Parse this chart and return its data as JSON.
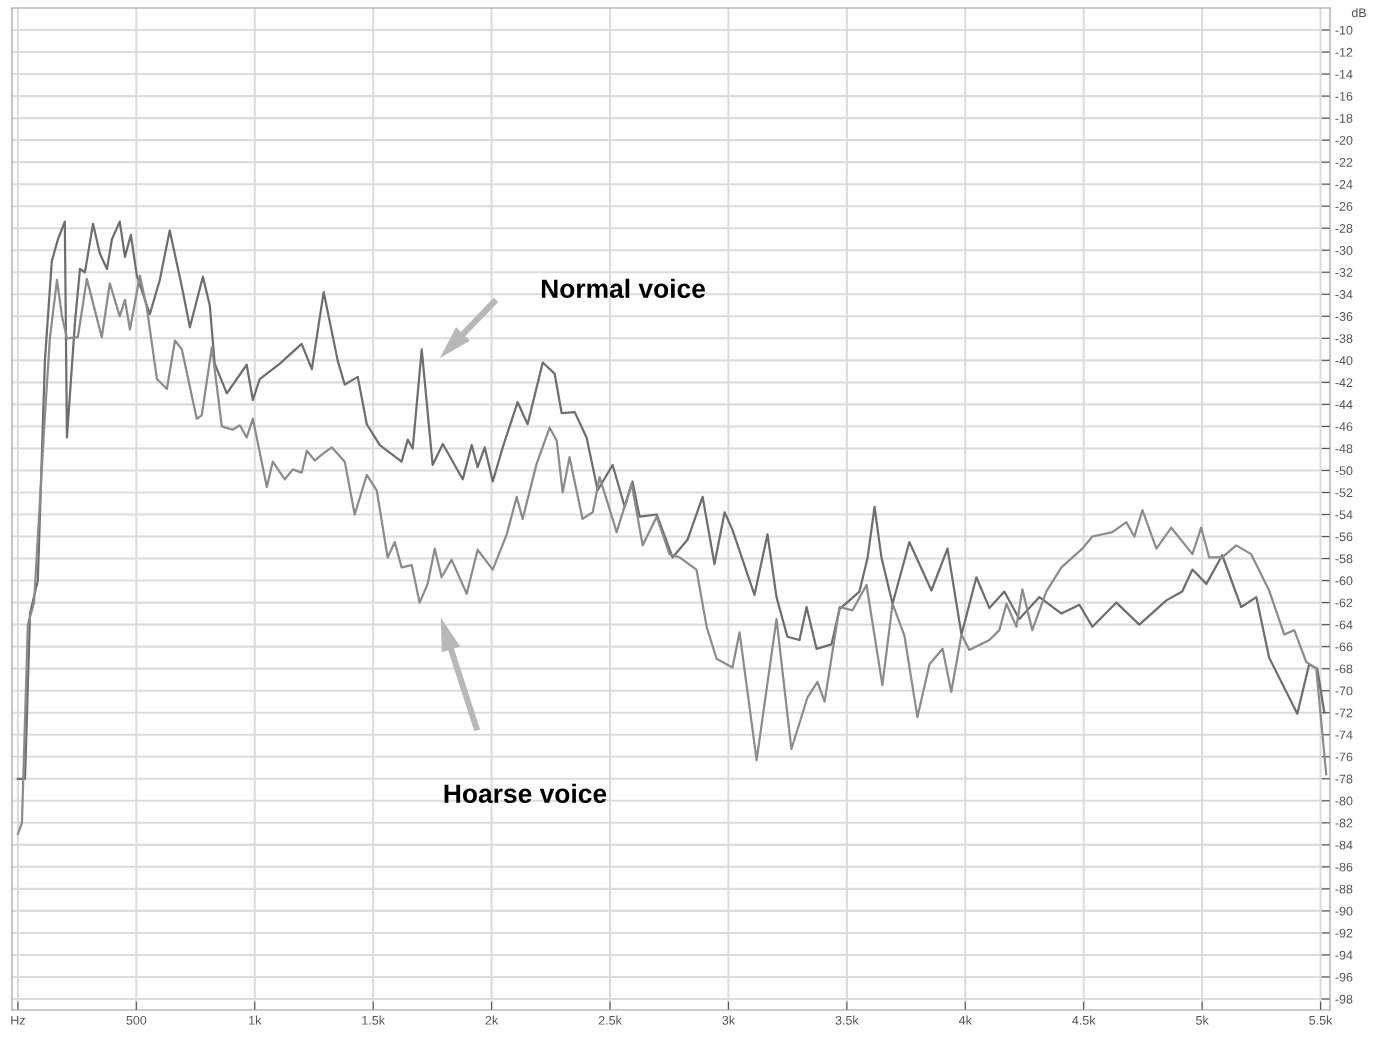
{
  "chart_data": {
    "type": "line",
    "ylabel": "dB",
    "xlim": [
      -25,
      5540
    ],
    "ylim": [
      -99,
      -8
    ],
    "xticks": [
      {
        "value": 0,
        "label": "Hz"
      },
      500,
      {
        "value": 1000,
        "label": "1k"
      },
      {
        "value": 1500,
        "label": "1.5k"
      },
      {
        "value": 2000,
        "label": "2k"
      },
      {
        "value": 2500,
        "label": "2.5k"
      },
      {
        "value": 3000,
        "label": "3k"
      },
      {
        "value": 3500,
        "label": "3.5k"
      },
      {
        "value": 4000,
        "label": "4k"
      },
      {
        "value": 4500,
        "label": "4.5k"
      },
      {
        "value": 5000,
        "label": "5k"
      },
      {
        "value": 5500,
        "label": "5.5k"
      }
    ],
    "yticks": [
      -10,
      -12,
      -14,
      -16,
      -18,
      -20,
      -22,
      -24,
      -26,
      -28,
      -30,
      -32,
      -34,
      -36,
      -38,
      -40,
      -42,
      -44,
      -46,
      -48,
      -50,
      -52,
      -54,
      -56,
      -58,
      -60,
      -62,
      -64,
      -66,
      -68,
      -70,
      -72,
      -74,
      -76,
      -78,
      -80,
      -82,
      -84,
      -86,
      -88,
      -90,
      -92,
      -94,
      -96,
      -98
    ],
    "grid": true,
    "legend": false,
    "marker": "none",
    "line_style": "solid",
    "series": [
      {
        "color": "#6e6e6e",
        "x": [
          0,
          30,
          51,
          84,
          114,
          143,
          169,
          198,
          207,
          241,
          262,
          283,
          317,
          346,
          376,
          397,
          430,
          452,
          477,
          502,
          557,
          599,
          641,
          692,
          726,
          781,
          810,
          831,
          882,
          966,
          992,
          1021,
          1106,
          1198,
          1241,
          1291,
          1350,
          1380,
          1435,
          1473,
          1528,
          1620,
          1646,
          1667,
          1705,
          1751,
          1794,
          1878,
          1916,
          1941,
          1971,
          2005,
          2047,
          2110,
          2152,
          2216,
          2266,
          2296,
          2351,
          2401,
          2448,
          2511,
          2562,
          2595,
          2625,
          2697,
          2764,
          2827,
          2891,
          2941,
          2984,
          3017,
          3110,
          3165,
          3203,
          3249,
          3300,
          3330,
          3372,
          3435,
          3469,
          3553,
          3587,
          3617,
          3646,
          3693,
          3764,
          3857,
          3925,
          3984,
          4047,
          4102,
          4165,
          4228,
          4313,
          4406,
          4482,
          4537,
          4638,
          4735,
          4849,
          4916,
          4959,
          5018,
          5085,
          5165,
          5229,
          5283,
          5402,
          5452,
          5486,
          5516
        ],
        "values": [
          -78,
          -78,
          -63,
          -60,
          -40,
          -31,
          -29,
          -27.4,
          -47,
          -36.5,
          -31.7,
          -32,
          -27.6,
          -30.3,
          -31.7,
          -29,
          -27.4,
          -30.6,
          -28.6,
          -32.3,
          -35.8,
          -32.7,
          -28.2,
          -33.3,
          -37,
          -32.4,
          -35,
          -40.3,
          -43,
          -40.4,
          -43.6,
          -41.7,
          -40.3,
          -38.5,
          -40.8,
          -33.8,
          -40,
          -42.2,
          -41.5,
          -45.8,
          -47.7,
          -49.2,
          -47.2,
          -48,
          -39,
          -49.5,
          -47.6,
          -50.8,
          -47.7,
          -49.7,
          -47.9,
          -51,
          -47.9,
          -43.8,
          -45.8,
          -40.2,
          -41.2,
          -44.8,
          -44.7,
          -47,
          -51.8,
          -49.5,
          -53.3,
          -51,
          -54.2,
          -54,
          -57.9,
          -56.3,
          -52.4,
          -58.5,
          -53.8,
          -55.4,
          -61.3,
          -55.8,
          -61.5,
          -65.1,
          -65.4,
          -62.4,
          -66.2,
          -65.8,
          -62.6,
          -61,
          -58,
          -53.3,
          -57.9,
          -62.1,
          -56.5,
          -60.9,
          -57.1,
          -64.9,
          -59.7,
          -62.5,
          -61,
          -63.5,
          -61.5,
          -63,
          -62.2,
          -64.2,
          -62,
          -64,
          -61.8,
          -61,
          -59,
          -60.3,
          -57.7,
          -62.4,
          -61.5,
          -67,
          -72.1,
          -67.6,
          -68,
          -72
        ]
      },
      {
        "color": "#8c8c8c",
        "x": [
          0,
          17,
          42,
          68,
          114,
          135,
          165,
          186,
          207,
          253,
          291,
          354,
          388,
          430,
          452,
          473,
          515,
          544,
          587,
          629,
          663,
          692,
          755,
          776,
          819,
          861,
          907,
          937,
          966,
          992,
          1051,
          1076,
          1127,
          1161,
          1198,
          1220,
          1253,
          1287,
          1325,
          1380,
          1422,
          1473,
          1515,
          1561,
          1591,
          1620,
          1663,
          1696,
          1730,
          1760,
          1789,
          1831,
          1895,
          1941,
          2005,
          2064,
          2106,
          2131,
          2190,
          2245,
          2275,
          2300,
          2329,
          2384,
          2427,
          2456,
          2528,
          2591,
          2638,
          2697,
          2751,
          2794,
          2865,
          2908,
          2950,
          3017,
          3047,
          3119,
          3203,
          3266,
          3334,
          3376,
          3406,
          3469,
          3524,
          3583,
          3650,
          3693,
          3743,
          3798,
          3849,
          3904,
          3941,
          3984,
          4017,
          4102,
          4144,
          4174,
          4216,
          4241,
          4283,
          4342,
          4406,
          4494,
          4537,
          4621,
          4680,
          4714,
          4748,
          4807,
          4870,
          4959,
          4996,
          5030,
          5085,
          5144,
          5207,
          5283,
          5347,
          5389,
          5440,
          5482,
          5524
        ],
        "values": [
          -83,
          -82,
          -64,
          -62,
          -45,
          -38,
          -32.7,
          -36,
          -38,
          -37.9,
          -32.6,
          -37.9,
          -33,
          -36,
          -34.5,
          -37.2,
          -32.3,
          -35.2,
          -41.7,
          -42.6,
          -38.2,
          -39,
          -45.3,
          -45,
          -38.8,
          -46,
          -46.3,
          -45.9,
          -47,
          -45.3,
          -51.5,
          -49.2,
          -50.8,
          -49.9,
          -50.2,
          -48.2,
          -49.1,
          -48.5,
          -47.9,
          -49.2,
          -54,
          -50.4,
          -51.8,
          -57.9,
          -56.5,
          -58.8,
          -58.6,
          -62,
          -60.3,
          -57.1,
          -59.7,
          -58.1,
          -61.2,
          -57.2,
          -59,
          -55.8,
          -52.4,
          -54.4,
          -49.4,
          -46.1,
          -47.3,
          -52,
          -48.8,
          -54.4,
          -53.8,
          -50.6,
          -55.6,
          -51.2,
          -56.8,
          -54.2,
          -57.6,
          -57.9,
          -59,
          -64.2,
          -67.1,
          -67.9,
          -64.7,
          -76.3,
          -63.5,
          -75.3,
          -70.6,
          -69.2,
          -71,
          -62.4,
          -62.7,
          -60.4,
          -69.5,
          -62.1,
          -65,
          -72.4,
          -67.6,
          -66.2,
          -70.1,
          -64.9,
          -66.3,
          -65.4,
          -64.5,
          -62.1,
          -64.2,
          -60.8,
          -64.5,
          -61,
          -58.8,
          -57.1,
          -56,
          -55.6,
          -54.7,
          -56,
          -53.6,
          -57.1,
          -55.2,
          -57.6,
          -55.2,
          -57.9,
          -57.9,
          -56.8,
          -57.6,
          -60.9,
          -64.9,
          -64.5,
          -67.4,
          -68,
          -77.6
        ]
      }
    ],
    "annotations": [
      "Normal voice",
      "Hoarse voice"
    ]
  }
}
